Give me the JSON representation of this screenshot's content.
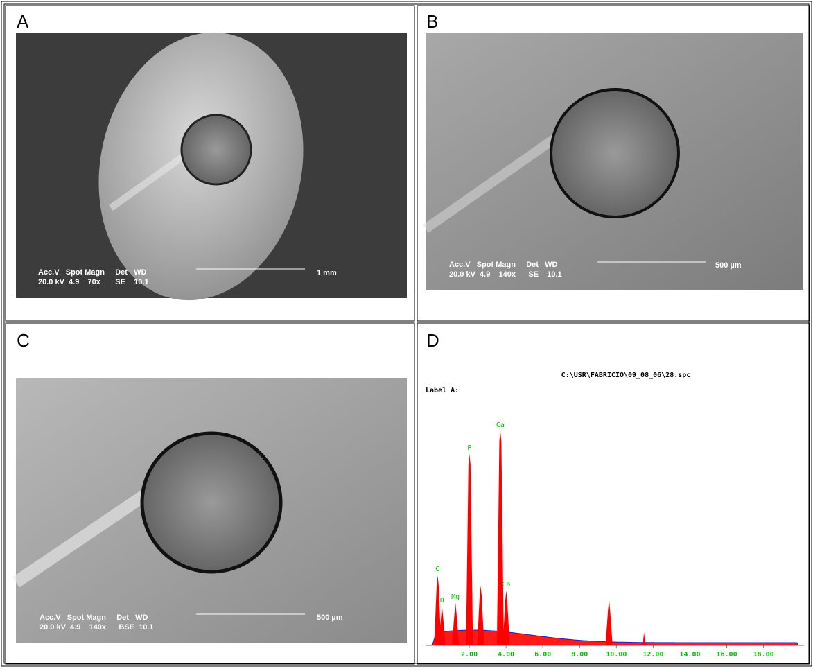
{
  "panels": [
    {
      "label": "A",
      "overlay": {
        "header": "Acc.V   Spot Magn     Det   WD",
        "values": "20.0 kV  4.9    70x       SE    10.1",
        "scale": "1 mm"
      }
    },
    {
      "label": "B",
      "overlay": {
        "header": "Acc.V   Spot Magn     Det   WD",
        "values": "20.0 kV  4.9    140x      SE    10.1",
        "scale": "500 µm"
      }
    },
    {
      "label": "C",
      "overlay": {
        "header": "Acc.V   Spot Magn     Det   WD",
        "values": "20.0 kV  4.9    140x      BSE  10.1",
        "scale": "500 µm"
      }
    },
    {
      "label": "D"
    }
  ],
  "spectrum": {
    "title": "C:\\USR\\FABRICIO\\09_08_06\\28.spc",
    "label": "Label A:",
    "xlim": [
      0,
      20.2
    ],
    "ylim": [
      0,
      320
    ],
    "xticks": [
      {
        "value": 2,
        "label": "2.00"
      },
      {
        "value": 4,
        "label": "4.00"
      },
      {
        "value": 6,
        "label": "6.00"
      },
      {
        "value": 8,
        "label": "8.00"
      },
      {
        "value": 10,
        "label": "10.00"
      },
      {
        "value": 12,
        "label": "12.00"
      },
      {
        "value": 14,
        "label": "14.00"
      },
      {
        "value": 16,
        "label": "16.00"
      },
      {
        "value": 18,
        "label": "18.00"
      }
    ],
    "peaks": [
      {
        "label": "C",
        "x": 0.28,
        "height": 100
      },
      {
        "label": "O",
        "x": 0.52,
        "height": 55
      },
      {
        "label": "Mg",
        "x": 1.25,
        "height": 60
      },
      {
        "label": "P",
        "x": 2.01,
        "height": 275
      },
      {
        "label": null,
        "x": 2.62,
        "height": 85
      },
      {
        "label": "Ca",
        "x": 3.69,
        "height": 308
      },
      {
        "label": "Ca",
        "x": 4.01,
        "height": 78
      },
      {
        "label": null,
        "x": 9.6,
        "height": 65
      },
      {
        "label": null,
        "x": 11.5,
        "height": 18
      }
    ],
    "color": "#ff0000",
    "label_color": "#00c000",
    "axis_color": "#00c000"
  }
}
